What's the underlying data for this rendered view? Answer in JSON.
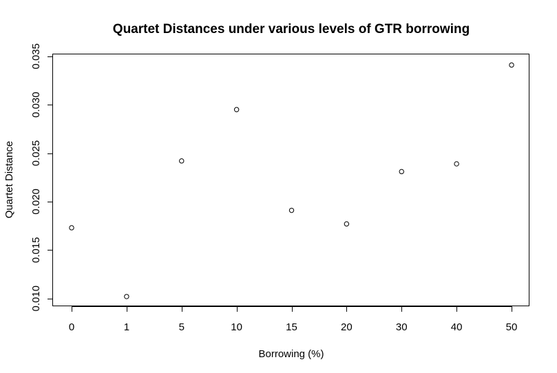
{
  "chart_data": {
    "type": "scatter",
    "title": "Quartet Distances under various levels of GTR borrowing",
    "xlabel": "Borrowing (%)",
    "ylabel": "Quartet Distance",
    "categories": [
      "0",
      "1",
      "5",
      "10",
      "15",
      "20",
      "30",
      "40",
      "50"
    ],
    "values": [
      0.0173,
      0.0102,
      0.0242,
      0.0295,
      0.0191,
      0.0177,
      0.0231,
      0.0239,
      0.0341
    ],
    "ylim": [
      0.0092,
      0.0352
    ],
    "y_ticks": [
      "0.010",
      "0.015",
      "0.020",
      "0.025",
      "0.030",
      "0.035"
    ],
    "grid": false,
    "legend": "none",
    "marker": "open-circle",
    "colors": {
      "ink": "#000000",
      "background": "#ffffff"
    }
  }
}
